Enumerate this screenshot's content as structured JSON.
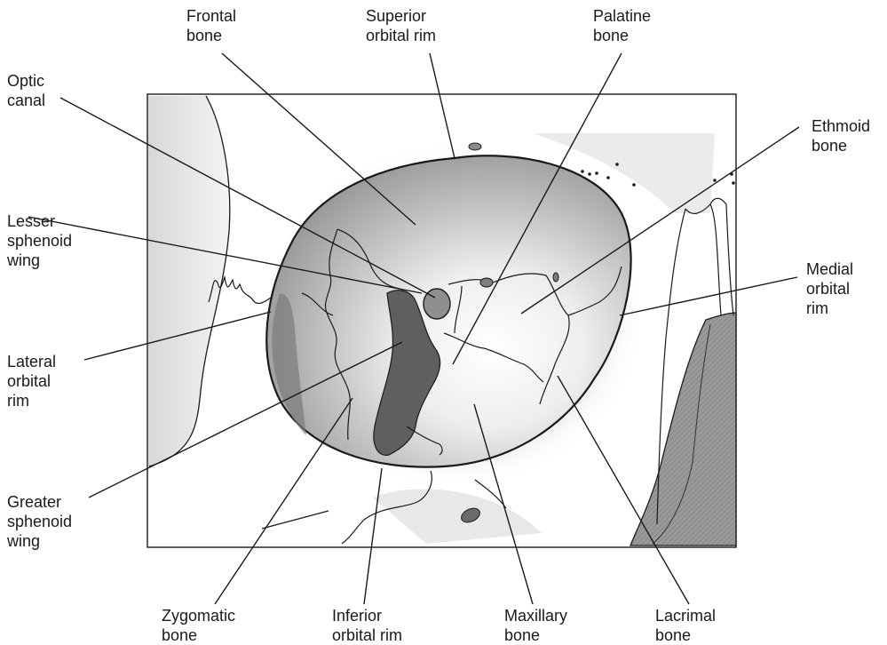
{
  "labels": {
    "frontal_bone": [
      "Frontal",
      "bone"
    ],
    "superior_orbital_rim": [
      "Superior",
      "orbital rim"
    ],
    "palatine_bone": [
      "Palatine",
      "bone"
    ],
    "optic_canal": [
      "Optic",
      "canal"
    ],
    "ethmoid_bone": [
      "Ethmoid",
      "bone"
    ],
    "lesser_sphenoid_wing": [
      "Lesser",
      "sphenoid",
      "wing"
    ],
    "medial_orbital_rim": [
      "Medial",
      "orbital",
      "rim"
    ],
    "lateral_orbital_rim": [
      "Lateral",
      "orbital",
      "rim"
    ],
    "greater_sphenoid_wing": [
      "Greater",
      "sphenoid",
      "wing"
    ],
    "zygomatic_bone": [
      "Zygomatic",
      "bone"
    ],
    "inferior_orbital_rim": [
      "Inferior",
      "orbital rim"
    ],
    "maxillary_bone": [
      "Maxillary",
      "bone"
    ],
    "lacrimal_bone": [
      "Lacrimal",
      "bone"
    ]
  }
}
